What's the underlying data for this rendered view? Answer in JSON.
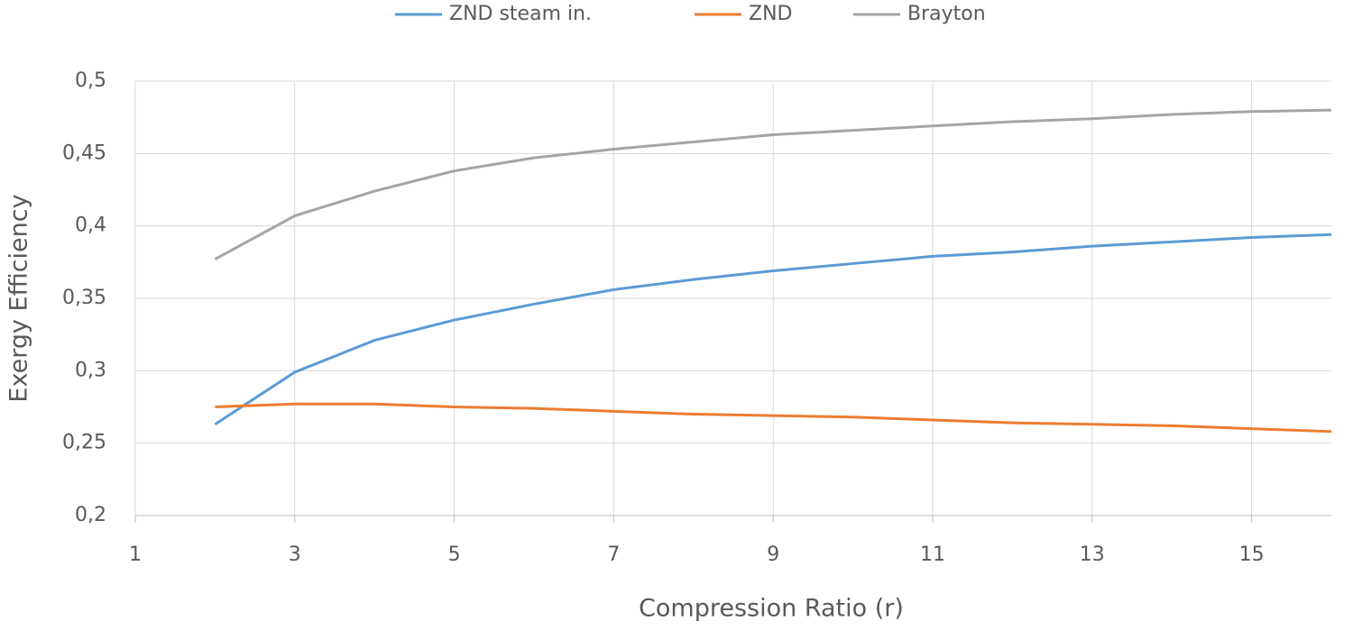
{
  "chart_data": {
    "type": "line",
    "xlabel": "Compression Ratio (r)",
    "ylabel": "Exergy Efficiency",
    "x": [
      2,
      3,
      4,
      5,
      6,
      7,
      8,
      9,
      10,
      11,
      12,
      13,
      14,
      15,
      16
    ],
    "series": [
      {
        "name": "ZND steam in.",
        "color": "#5b9bd5",
        "values": [
          0.263,
          0.299,
          0.321,
          0.335,
          0.346,
          0.356,
          0.363,
          0.369,
          0.374,
          0.379,
          0.382,
          0.386,
          0.389,
          0.392,
          0.394
        ]
      },
      {
        "name": "ZND",
        "color": "#ed7d31",
        "values": [
          0.275,
          0.277,
          0.277,
          0.275,
          0.274,
          0.272,
          0.27,
          0.269,
          0.268,
          0.266,
          0.264,
          0.263,
          0.262,
          0.26,
          0.258
        ]
      },
      {
        "name": "Brayton",
        "color": "#a5a5a5",
        "values": [
          0.377,
          0.407,
          0.424,
          0.438,
          0.447,
          0.453,
          0.458,
          0.463,
          0.466,
          0.469,
          0.472,
          0.474,
          0.477,
          0.479,
          0.48
        ]
      }
    ],
    "xlim": [
      1,
      16
    ],
    "xticks": [
      1,
      3,
      5,
      7,
      9,
      11,
      13,
      15
    ],
    "ylim": [
      0.2,
      0.5
    ],
    "yticks": [
      {
        "value": 0.2,
        "label": "0,2"
      },
      {
        "value": 0.25,
        "label": "0,25"
      },
      {
        "value": 0.3,
        "label": "0,3"
      },
      {
        "value": 0.35,
        "label": "0,35"
      },
      {
        "value": 0.4,
        "label": "0,4"
      },
      {
        "value": 0.45,
        "label": "0,45"
      },
      {
        "value": 0.5,
        "label": "0,5"
      }
    ],
    "grid": true,
    "legend": "top"
  }
}
